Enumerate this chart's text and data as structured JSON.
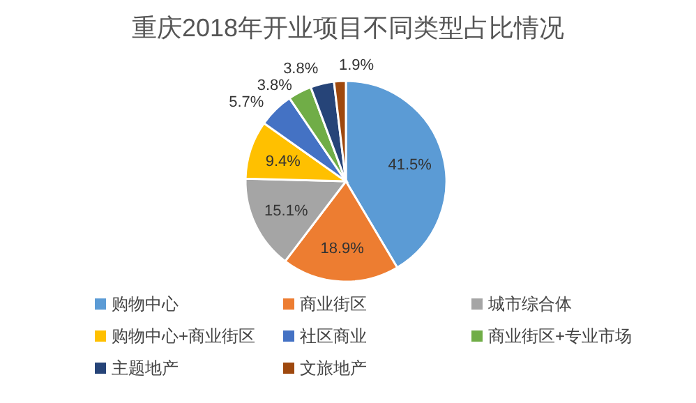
{
  "chart_data": {
    "type": "pie",
    "title": "重庆2018年开业项目不同类型占比情况",
    "categories": [
      "购物中心",
      "商业街区",
      "城市综合体",
      "购物中心+商业街区",
      "社区商业",
      "商业街区+专业市场",
      "主题地产",
      "文旅地产"
    ],
    "values": [
      41.5,
      18.9,
      15.1,
      9.4,
      5.7,
      3.8,
      3.8,
      1.9
    ],
    "colors": [
      "#5b9bd5",
      "#ed7d31",
      "#a5a5a5",
      "#ffc000",
      "#4472c4",
      "#70ad47",
      "#264478",
      "#9e480e"
    ],
    "value_labels": [
      "41.5%",
      "18.9%",
      "15.1%",
      "9.4%",
      "5.7%",
      "3.8%",
      "3.8%",
      "1.9%"
    ],
    "legend": "bottom"
  }
}
